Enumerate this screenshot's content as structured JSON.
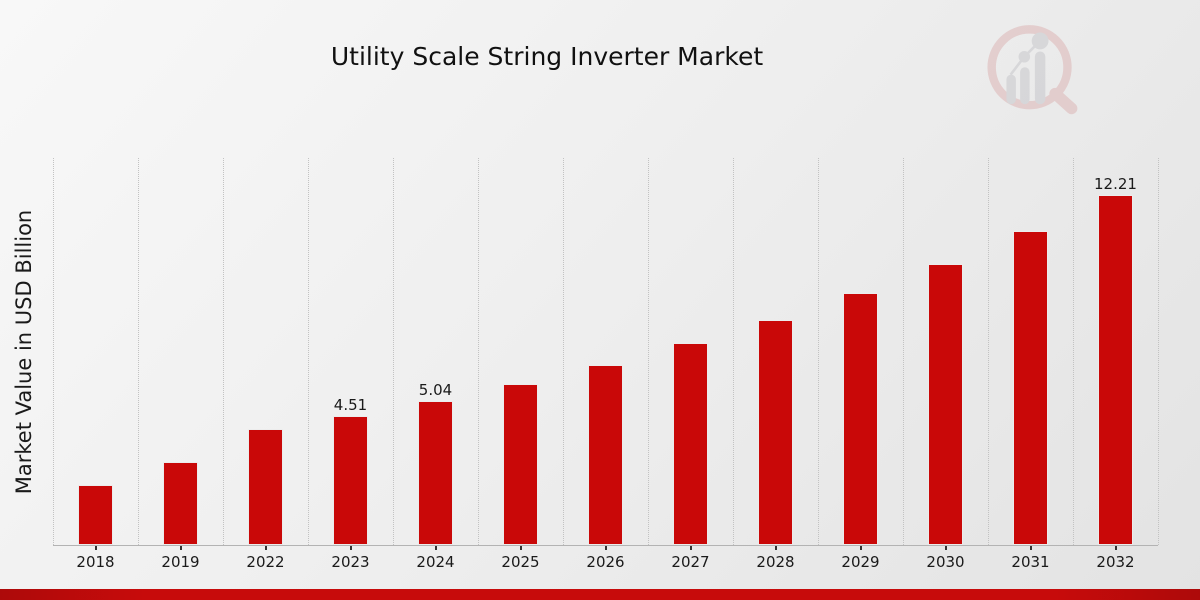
{
  "page": {
    "background_top": "#f8f8f8",
    "background_bottom": "#e3e3e3"
  },
  "branding": {
    "watermark_icon": "magnifier-bar-chart-logo",
    "watermark_ring_color": "#ddb6b6",
    "watermark_bars_color": "#c7c7cc",
    "footer_accent_color": "#c70b0b"
  },
  "chart_data": {
    "type": "bar",
    "title": "Utility Scale String Inverter Market",
    "xlabel": "",
    "ylabel": "Market Value in USD Billion",
    "categories": [
      "2018",
      "2019",
      "2022",
      "2023",
      "2024",
      "2025",
      "2026",
      "2027",
      "2028",
      "2029",
      "2030",
      "2031",
      "2032"
    ],
    "values": [
      2.1,
      2.9,
      4.06,
      4.51,
      5.04,
      5.63,
      6.29,
      7.03,
      7.86,
      8.78,
      9.81,
      10.96,
      12.21
    ],
    "data_labels": [
      "",
      "",
      "",
      "4.51",
      "5.04",
      "",
      "",
      "",
      "",
      "",
      "",
      "",
      "12.21"
    ],
    "ylim": [
      0,
      13.5
    ],
    "grid": "vertical-dotted",
    "legend": "none",
    "bar_color": "#c90808",
    "label_color": "#1a1a1a",
    "axis_color": "#b3b3b3",
    "gridline_color": "#c2c2c2"
  }
}
